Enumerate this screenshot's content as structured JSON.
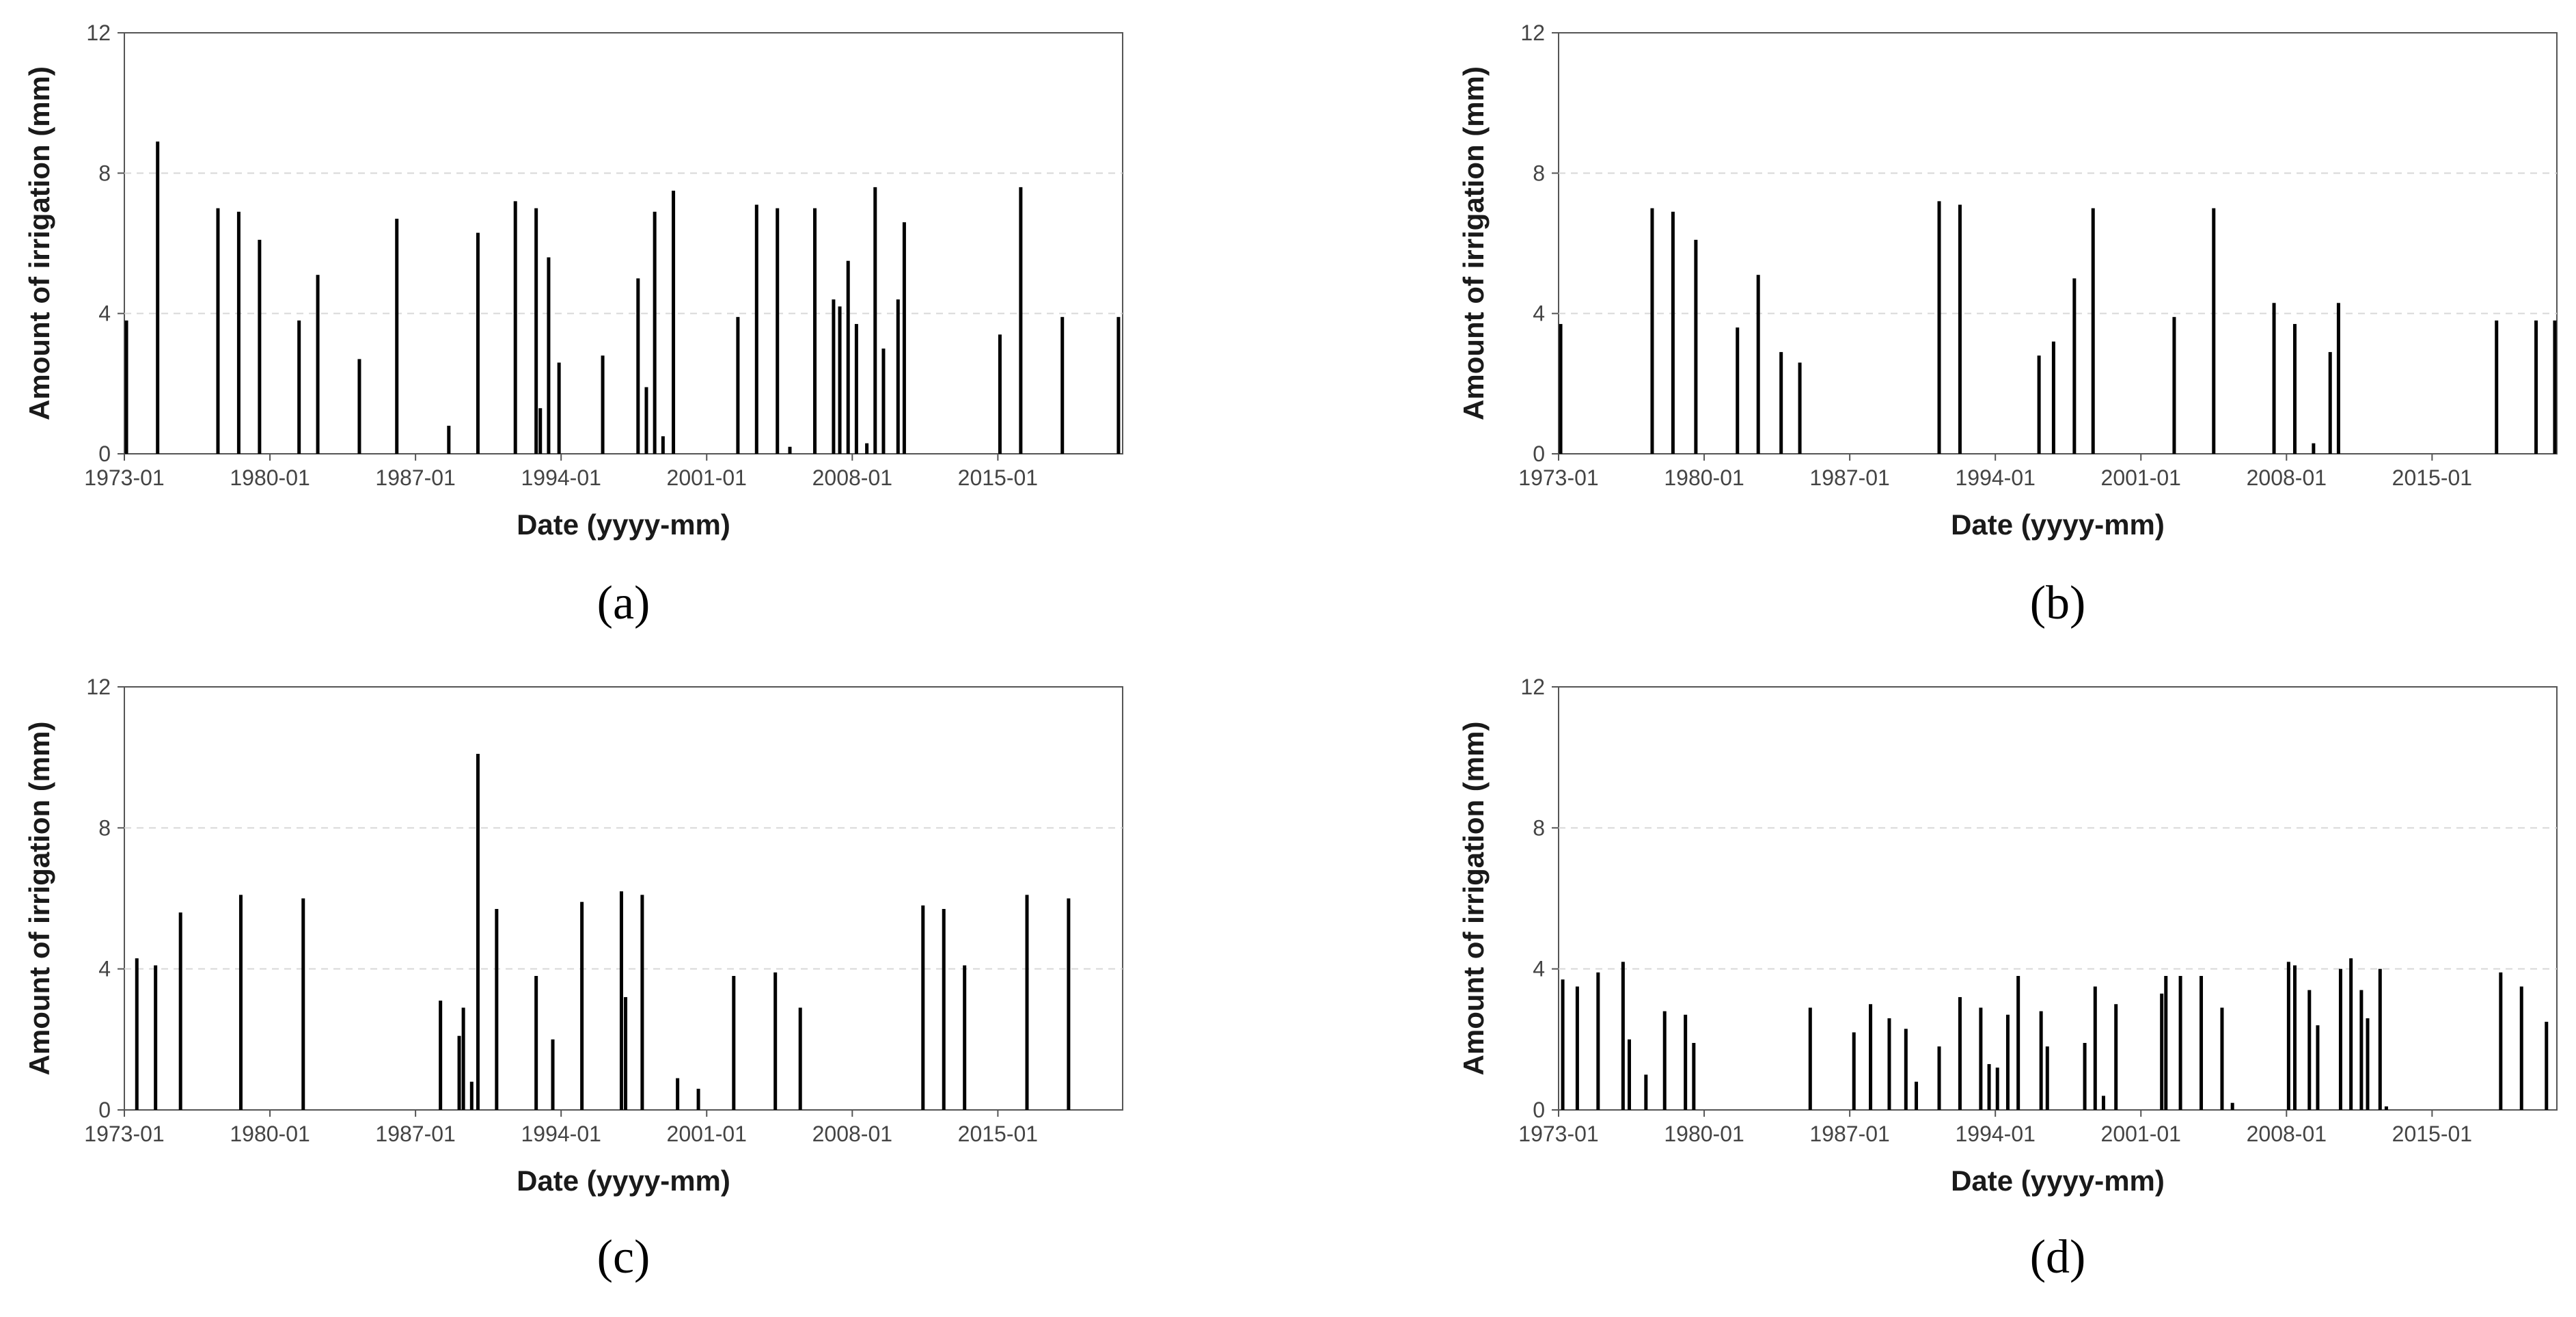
{
  "figure": {
    "bar_color": "#000000",
    "grid_color": "#d8d8d8",
    "axis_color": "#555555"
  },
  "chart_data": [
    {
      "type": "bar",
      "panel": "(a)",
      "xlabel": "Date (yyyy-mm)",
      "ylabel": "Amount of irrigation (mm)",
      "xlim": [
        1973.0,
        2021.0
      ],
      "ylim": [
        0,
        12
      ],
      "yticks": [
        0,
        4,
        8,
        12
      ],
      "xticks": [
        {
          "value": 1973.0,
          "label": "1973-01"
        },
        {
          "value": 1980.0,
          "label": "1980-01"
        },
        {
          "value": 1987.0,
          "label": "1987-01"
        },
        {
          "value": 1994.0,
          "label": "1994-01"
        },
        {
          "value": 2001.0,
          "label": "2001-01"
        },
        {
          "value": 2008.0,
          "label": "2008-01"
        },
        {
          "value": 2015.0,
          "label": "2015-01"
        }
      ],
      "grid": true,
      "x": [
        1973.1,
        1974.6,
        1977.5,
        1978.5,
        1979.5,
        1981.4,
        1982.3,
        1984.3,
        1986.1,
        1988.6,
        1990.0,
        1991.8,
        1992.8,
        1993.0,
        1993.4,
        1993.9,
        1996.0,
        1997.7,
        1998.1,
        1998.5,
        1998.9,
        1999.4,
        2002.5,
        2003.4,
        2004.4,
        2005.0,
        2006.2,
        2007.1,
        2007.4,
        2007.8,
        2008.2,
        2008.7,
        2009.1,
        2009.5,
        2010.2,
        2010.5,
        2015.1,
        2016.1,
        2018.1,
        2020.8
      ],
      "values": [
        3.8,
        8.9,
        7.0,
        6.9,
        6.1,
        3.8,
        5.1,
        2.7,
        6.7,
        0.8,
        6.3,
        7.2,
        7.0,
        1.3,
        5.6,
        2.6,
        2.8,
        5.0,
        1.9,
        6.9,
        0.5,
        7.5,
        3.9,
        7.1,
        7.0,
        0.2,
        7.0,
        4.4,
        4.2,
        5.5,
        3.7,
        0.3,
        7.6,
        3.0,
        4.4,
        6.6,
        3.4,
        7.6,
        3.9,
        3.9
      ]
    },
    {
      "type": "bar",
      "panel": "(b)",
      "xlabel": "Date (yyyy-mm)",
      "ylabel": "Amount of irrigation (mm)",
      "xlim": [
        1973.0,
        2021.0
      ],
      "ylim": [
        0,
        12
      ],
      "yticks": [
        0,
        4,
        8,
        12
      ],
      "xticks": [
        {
          "value": 1973.0,
          "label": "1973-01"
        },
        {
          "value": 1980.0,
          "label": "1980-01"
        },
        {
          "value": 1987.0,
          "label": "1987-01"
        },
        {
          "value": 1994.0,
          "label": "1994-01"
        },
        {
          "value": 2001.0,
          "label": "2001-01"
        },
        {
          "value": 2008.0,
          "label": "2008-01"
        },
        {
          "value": 2015.0,
          "label": "2015-01"
        }
      ],
      "grid": true,
      "x": [
        1973.1,
        1977.5,
        1978.5,
        1979.6,
        1981.6,
        1982.6,
        1983.7,
        1984.6,
        1991.3,
        1992.3,
        1996.1,
        1996.8,
        1997.8,
        1998.7,
        2002.6,
        2004.5,
        2007.4,
        2008.4,
        2009.3,
        2010.1,
        2010.5,
        2018.1,
        2020.0,
        2020.9
      ],
      "values": [
        3.7,
        7.0,
        6.9,
        6.1,
        3.6,
        5.1,
        2.9,
        2.6,
        7.2,
        7.1,
        2.8,
        3.2,
        5.0,
        7.0,
        3.9,
        7.0,
        4.3,
        3.7,
        0.3,
        2.9,
        4.3,
        3.8,
        3.8,
        3.8
      ]
    },
    {
      "type": "bar",
      "panel": "(c)",
      "xlabel": "Date (yyyy-mm)",
      "ylabel": "Amount of irrigation (mm)",
      "xlim": [
        1973.0,
        2021.0
      ],
      "ylim": [
        0,
        12
      ],
      "yticks": [
        0,
        4,
        8,
        12
      ],
      "xticks": [
        {
          "value": 1973.0,
          "label": "1973-01"
        },
        {
          "value": 1980.0,
          "label": "1980-01"
        },
        {
          "value": 1987.0,
          "label": "1987-01"
        },
        {
          "value": 1994.0,
          "label": "1994-01"
        },
        {
          "value": 2001.0,
          "label": "2001-01"
        },
        {
          "value": 2008.0,
          "label": "2008-01"
        },
        {
          "value": 2015.0,
          "label": "2015-01"
        }
      ],
      "grid": true,
      "x": [
        1973.6,
        1974.5,
        1975.7,
        1978.6,
        1981.6,
        1988.2,
        1989.1,
        1989.3,
        1989.7,
        1990.0,
        1990.9,
        1992.8,
        1993.6,
        1995.0,
        1996.9,
        1997.1,
        1997.9,
        1999.6,
        2000.6,
        2002.3,
        2004.3,
        2005.5,
        2011.4,
        2012.4,
        2013.4,
        2016.4,
        2018.4
      ],
      "values": [
        4.3,
        4.1,
        5.6,
        6.1,
        6.0,
        3.1,
        2.1,
        2.9,
        0.8,
        10.1,
        5.7,
        3.8,
        2.0,
        5.9,
        6.2,
        3.2,
        6.1,
        0.9,
        0.6,
        3.8,
        3.9,
        2.9,
        5.8,
        5.7,
        4.1,
        6.1,
        6.0
      ]
    },
    {
      "type": "bar",
      "panel": "(d)",
      "xlabel": "Date (yyyy-mm)",
      "ylabel": "Amount of irrigation (mm)",
      "xlim": [
        1973.0,
        2021.0
      ],
      "ylim": [
        0,
        12
      ],
      "yticks": [
        0,
        4,
        8,
        12
      ],
      "xticks": [
        {
          "value": 1973.0,
          "label": "1973-01"
        },
        {
          "value": 1980.0,
          "label": "1980-01"
        },
        {
          "value": 1987.0,
          "label": "1987-01"
        },
        {
          "value": 1994.0,
          "label": "1994-01"
        },
        {
          "value": 2001.0,
          "label": "2001-01"
        },
        {
          "value": 2008.0,
          "label": "2008-01"
        },
        {
          "value": 2015.0,
          "label": "2015-01"
        }
      ],
      "grid": true,
      "x": [
        1973.2,
        1973.9,
        1974.9,
        1976.1,
        1976.4,
        1977.2,
        1978.1,
        1979.1,
        1979.5,
        1985.1,
        1987.2,
        1988.0,
        1988.9,
        1989.7,
        1990.2,
        1991.3,
        1992.3,
        1993.3,
        1993.7,
        1994.1,
        1994.6,
        1995.1,
        1996.2,
        1996.5,
        1998.3,
        1998.8,
        1999.2,
        1999.8,
        2002.0,
        2002.2,
        2002.9,
        2003.9,
        2004.9,
        2005.4,
        2008.1,
        2008.4,
        2009.1,
        2009.5,
        2010.6,
        2011.1,
        2011.6,
        2011.9,
        2012.5,
        2012.8,
        2018.3,
        2019.3,
        2020.5
      ],
      "values": [
        3.7,
        3.5,
        3.9,
        4.2,
        2.0,
        1.0,
        2.8,
        2.7,
        1.9,
        2.9,
        2.2,
        3.0,
        2.6,
        2.3,
        0.8,
        1.8,
        3.2,
        2.9,
        1.3,
        1.2,
        2.7,
        3.8,
        2.8,
        1.8,
        1.9,
        3.5,
        0.4,
        3.0,
        3.3,
        3.8,
        3.8,
        3.8,
        2.9,
        0.2,
        4.2,
        4.1,
        3.4,
        2.4,
        4.0,
        4.3,
        3.4,
        2.6,
        4.0,
        0.1,
        3.9,
        3.5,
        2.5
      ]
    }
  ]
}
